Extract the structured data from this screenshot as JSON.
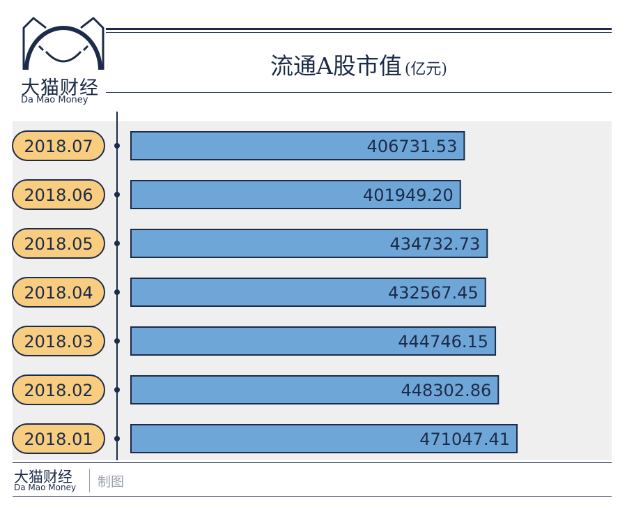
{
  "brand": {
    "name_cn": "大猫财经",
    "name_en": "Da Mao Money"
  },
  "title": {
    "main": "流通A股市值",
    "unit": "(亿元)"
  },
  "footer": {
    "brand_cn": "大猫财经",
    "brand_en": "Da Mao Money",
    "made_by": "制图"
  },
  "colors": {
    "navy": "#1c2b48",
    "bar_fill": "#6fa6d8",
    "label_pill": "#f9cd7f",
    "row_band": "#efefef"
  },
  "chart_data": {
    "type": "bar",
    "orientation": "horizontal",
    "title": "流通A股市值",
    "unit": "亿元",
    "categories": [
      "2018.07",
      "2018.06",
      "2018.05",
      "2018.04",
      "2018.03",
      "2018.02",
      "2018.01"
    ],
    "values": [
      406731.53,
      401949.2,
      434732.73,
      432567.45,
      444746.15,
      448302.86,
      471047.41
    ],
    "value_labels": [
      "406731.53",
      "401949.20",
      "434732.73",
      "432567.45",
      "444746.15",
      "448302.86",
      "471047.41"
    ],
    "xlim": [
      0,
      471047.41
    ],
    "grid": false,
    "legend": "none"
  }
}
